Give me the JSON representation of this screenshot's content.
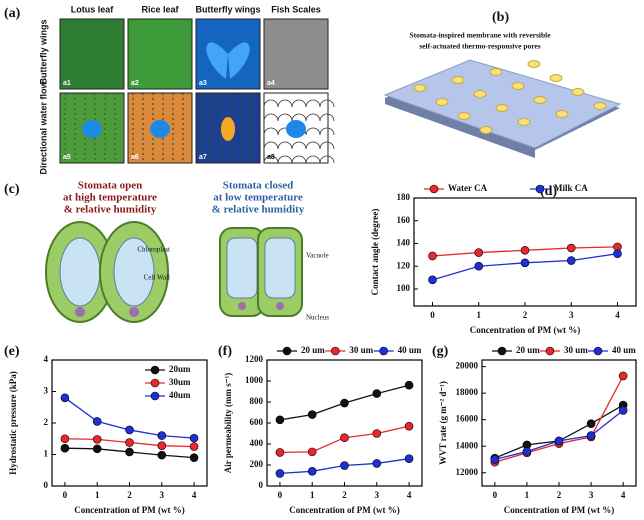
{
  "panel_labels": [
    "(a)",
    "(b)",
    "(c)",
    "(d)",
    "(e)",
    "(f)",
    "(g)"
  ],
  "panel_a": {
    "columns": [
      "Lotus leaf",
      "Rice leaf",
      "Butterfly wings",
      "Fish Scales"
    ],
    "rows": [
      "Butterfly wings",
      "Directional water flow"
    ],
    "tiles": [
      "a1",
      "a2",
      "a3",
      "a4",
      "a5",
      "a6",
      "a7",
      "a8"
    ]
  },
  "panel_b": {
    "title": [
      "Stomata-inspired membrane with reversible",
      "self-actuated thermo-responsive pores"
    ]
  },
  "panel_c": {
    "open": [
      "Stomata open",
      "at high temperature",
      "& relative humidity"
    ],
    "closed": [
      "Stomata closed",
      "at low temperature",
      "& relative humidity"
    ],
    "parts": [
      "Chloroplast",
      "Cell Wall",
      "Vacuole",
      "Nucleus"
    ]
  },
  "chart_data": [
    {
      "type": "line",
      "xlabel": "Concentration of PM (wt %)",
      "ylabel": "Contact angle (degree)",
      "x": [
        0,
        1,
        2,
        3,
        4
      ],
      "xlim": [
        -0.4,
        4.4
      ],
      "xticks": [
        0,
        1,
        2,
        3,
        4
      ],
      "ylim": [
        85,
        180
      ],
      "yticks": [
        100,
        120,
        140,
        160,
        180
      ],
      "legend": "top",
      "series": [
        {
          "name": "Water CA",
          "color": "#e8282b",
          "values": [
            129,
            132,
            134,
            136,
            137
          ]
        },
        {
          "name": "Milk CA",
          "color": "#1f2fd6",
          "values": [
            108,
            120,
            123,
            125,
            131
          ]
        }
      ]
    },
    {
      "type": "line",
      "xlabel": "Concentration of PM (wt %)",
      "ylabel": "Hydrostatic pressure (kPa)",
      "x": [
        0,
        1,
        2,
        3,
        4
      ],
      "xlim": [
        -0.4,
        4.4
      ],
      "xticks": [
        0,
        1,
        2,
        3,
        4
      ],
      "ylim": [
        0,
        4
      ],
      "yticks": [
        0,
        1,
        2,
        3,
        4
      ],
      "legend": "upper right",
      "series": [
        {
          "name": "20um",
          "color": "#111111",
          "values": [
            1.2,
            1.18,
            1.08,
            0.98,
            0.9
          ]
        },
        {
          "name": "30um",
          "color": "#e8282b",
          "values": [
            1.5,
            1.48,
            1.38,
            1.28,
            1.25
          ]
        },
        {
          "name": "40um",
          "color": "#1f2fd6",
          "values": [
            2.8,
            2.05,
            1.78,
            1.6,
            1.52
          ]
        }
      ]
    },
    {
      "type": "line",
      "xlabel": "Concentration of PM (wt %)",
      "ylabel": "Air permeability (mm s⁻¹)",
      "x": [
        0,
        1,
        2,
        3,
        4
      ],
      "xlim": [
        -0.4,
        4.4
      ],
      "xticks": [
        0,
        1,
        2,
        3,
        4
      ],
      "ylim": [
        0,
        1200
      ],
      "yticks": [
        0,
        200,
        400,
        600,
        800,
        1000,
        1200
      ],
      "legend": "top",
      "series": [
        {
          "name": "20 um",
          "color": "#111111",
          "values": [
            630,
            680,
            790,
            880,
            960
          ]
        },
        {
          "name": "30 um",
          "color": "#e8282b",
          "values": [
            320,
            325,
            460,
            500,
            570
          ]
        },
        {
          "name": "40 um",
          "color": "#1f2fd6",
          "values": [
            120,
            140,
            195,
            215,
            260
          ]
        }
      ]
    },
    {
      "type": "line",
      "xlabel": "Concentration of PM (wt %)",
      "ylabel": "WVT rate (g m⁻² d⁻¹)",
      "x": [
        0,
        1,
        2,
        3,
        4
      ],
      "xlim": [
        -0.4,
        4.4
      ],
      "xticks": [
        0,
        1,
        2,
        3,
        4
      ],
      "ylim": [
        11000,
        20500
      ],
      "yticks": [
        12000,
        14000,
        16000,
        18000,
        20000
      ],
      "legend": "top",
      "series": [
        {
          "name": "20 um",
          "color": "#111111",
          "values": [
            13100,
            14100,
            14400,
            15700,
            17100
          ]
        },
        {
          "name": "30 um",
          "color": "#e8282b",
          "values": [
            12800,
            13500,
            14200,
            14700,
            19300
          ]
        },
        {
          "name": "40 um",
          "color": "#1f2fd6",
          "values": [
            13000,
            13600,
            14400,
            14800,
            16700
          ]
        }
      ]
    }
  ]
}
